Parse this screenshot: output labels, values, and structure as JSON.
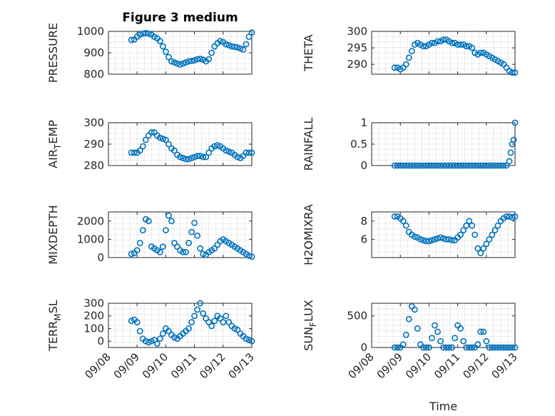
{
  "figure_title": "Figure 3 medium",
  "chart_data": [
    {
      "type": "scatter",
      "ylabel": "PRESSURE",
      "xlabel": "",
      "xlim": [
        0,
        5
      ],
      "ylim": [
        800,
        1000
      ],
      "yticks": [
        800,
        900,
        1000
      ],
      "xticks": [
        "09/08",
        "09/09",
        "09/10",
        "09/11",
        "09/12",
        "09/13"
      ],
      "x": [
        0.8,
        0.9,
        1,
        1.1,
        1.2,
        1.3,
        1.4,
        1.5,
        1.6,
        1.7,
        1.8,
        1.9,
        2,
        2.1,
        2.2,
        2.3,
        2.4,
        2.5,
        2.6,
        2.7,
        2.8,
        2.9,
        3,
        3.1,
        3.2,
        3.3,
        3.4,
        3.5,
        3.6,
        3.7,
        3.8,
        3.9,
        4,
        4.1,
        4.2,
        4.3,
        4.4,
        4.5,
        4.6,
        4.7,
        4.8,
        4.9,
        5
      ],
      "y": [
        960,
        962,
        975,
        985,
        990,
        992,
        990,
        985,
        975,
        968,
        955,
        930,
        905,
        880,
        860,
        855,
        850,
        845,
        850,
        855,
        860,
        862,
        865,
        870,
        872,
        868,
        860,
        870,
        900,
        930,
        945,
        955,
        950,
        940,
        935,
        930,
        928,
        925,
        920,
        915,
        940,
        975,
        995
      ]
    },
    {
      "type": "scatter",
      "ylabel": "THETA",
      "xlabel": "",
      "xlim": [
        0,
        5
      ],
      "ylim": [
        287,
        300
      ],
      "yticks": [
        290,
        295,
        300
      ],
      "xticks": [
        "09/08",
        "09/09",
        "09/10",
        "09/11",
        "09/12",
        "09/13"
      ],
      "x": [
        0.8,
        0.9,
        1,
        1.1,
        1.2,
        1.3,
        1.4,
        1.5,
        1.6,
        1.7,
        1.8,
        1.9,
        2,
        2.1,
        2.2,
        2.3,
        2.4,
        2.5,
        2.6,
        2.7,
        2.8,
        2.9,
        3,
        3.1,
        3.2,
        3.3,
        3.4,
        3.5,
        3.6,
        3.7,
        3.8,
        3.9,
        4,
        4.1,
        4.2,
        4.3,
        4.4,
        4.5,
        4.6,
        4.7,
        4.8,
        4.9,
        5
      ],
      "y": [
        289,
        289,
        288.5,
        289,
        290,
        292,
        294,
        296,
        296.5,
        296,
        295.5,
        295.5,
        296,
        296.5,
        296.5,
        297,
        297,
        297.5,
        297.5,
        297,
        296.5,
        296.5,
        296,
        296,
        296,
        295.5,
        295.5,
        295,
        293.5,
        293,
        293.5,
        293.5,
        293,
        292.5,
        292,
        291.5,
        291,
        290.5,
        290,
        289,
        288,
        287.5,
        287.5
      ]
    },
    {
      "type": "scatter",
      "ylabel": "AIR_TEMP",
      "xlabel": "",
      "xlim": [
        0,
        5
      ],
      "ylim": [
        280,
        300
      ],
      "yticks": [
        280,
        290,
        300
      ],
      "xticks": [
        "09/08",
        "09/09",
        "09/10",
        "09/11",
        "09/12",
        "09/13"
      ],
      "x": [
        0.8,
        0.9,
        1,
        1.1,
        1.2,
        1.3,
        1.4,
        1.5,
        1.6,
        1.7,
        1.8,
        1.9,
        2,
        2.1,
        2.2,
        2.3,
        2.4,
        2.5,
        2.6,
        2.7,
        2.8,
        2.9,
        3,
        3.1,
        3.2,
        3.3,
        3.4,
        3.5,
        3.6,
        3.7,
        3.8,
        3.9,
        4,
        4.1,
        4.2,
        4.3,
        4.4,
        4.5,
        4.6,
        4.7,
        4.8,
        4.9,
        5
      ],
      "y": [
        286,
        286,
        286,
        287,
        289,
        292,
        294,
        295.5,
        295.5,
        294,
        293,
        292.5,
        292,
        290,
        288,
        287,
        285,
        284,
        283.5,
        283,
        283,
        283.5,
        284,
        284.5,
        284.5,
        284,
        284,
        286,
        288,
        289,
        289.5,
        289,
        288,
        287,
        286.5,
        286,
        285,
        284,
        283.5,
        284.5,
        286,
        286,
        286
      ]
    },
    {
      "type": "scatter",
      "ylabel": "RAINFALL",
      "xlabel": "",
      "xlim": [
        0,
        5
      ],
      "ylim": [
        0,
        1
      ],
      "yticks": [
        0,
        0.5,
        1
      ],
      "xticks": [
        "09/08",
        "09/09",
        "09/10",
        "09/11",
        "09/12",
        "09/13"
      ],
      "x": [
        0.8,
        0.9,
        1,
        1.1,
        1.2,
        1.3,
        1.4,
        1.5,
        1.6,
        1.7,
        1.8,
        1.9,
        2,
        2.1,
        2.2,
        2.3,
        2.4,
        2.5,
        2.6,
        2.7,
        2.8,
        2.9,
        3,
        3.1,
        3.2,
        3.3,
        3.4,
        3.5,
        3.6,
        3.7,
        3.8,
        3.9,
        4,
        4.1,
        4.2,
        4.3,
        4.4,
        4.5,
        4.6,
        4.7,
        4.8,
        4.85,
        4.9,
        4.95,
        5
      ],
      "y": [
        0,
        0,
        0,
        0,
        0,
        0,
        0,
        0,
        0,
        0,
        0,
        0,
        0,
        0,
        0,
        0,
        0,
        0,
        0,
        0,
        0,
        0,
        0,
        0,
        0,
        0,
        0,
        0,
        0,
        0,
        0,
        0,
        0,
        0,
        0,
        0,
        0,
        0,
        0,
        0,
        0.1,
        0.3,
        0.5,
        0.6,
        1
      ]
    },
    {
      "type": "scatter",
      "ylabel": "MIXDEPTH",
      "xlabel": "",
      "xlim": [
        0,
        5
      ],
      "ylim": [
        0,
        2500
      ],
      "yticks": [
        0,
        1000,
        2000
      ],
      "xticks": [
        "09/08",
        "09/09",
        "09/10",
        "09/11",
        "09/12",
        "09/13"
      ],
      "x": [
        0.8,
        0.9,
        1,
        1.1,
        1.2,
        1.3,
        1.4,
        1.5,
        1.6,
        1.7,
        1.8,
        1.9,
        2,
        2.1,
        2.2,
        2.3,
        2.4,
        2.5,
        2.6,
        2.7,
        2.8,
        2.9,
        3,
        3.1,
        3.2,
        3.3,
        3.4,
        3.5,
        3.6,
        3.7,
        3.8,
        3.9,
        4,
        4.1,
        4.2,
        4.3,
        4.4,
        4.5,
        4.6,
        4.7,
        4.8,
        4.9,
        5
      ],
      "y": [
        200,
        250,
        400,
        800,
        1500,
        2100,
        2000,
        600,
        500,
        400,
        300,
        600,
        1500,
        2300,
        2000,
        800,
        600,
        400,
        300,
        300,
        800,
        1400,
        1900,
        1200,
        500,
        200,
        150,
        300,
        400,
        500,
        700,
        900,
        1000,
        900,
        800,
        700,
        600,
        500,
        400,
        300,
        200,
        100,
        50
      ]
    },
    {
      "type": "scatter",
      "ylabel": "H2OMIXRA",
      "xlabel": "",
      "xlim": [
        0,
        5
      ],
      "ylim": [
        4,
        9
      ],
      "yticks": [
        6,
        8
      ],
      "xticks": [
        "09/08",
        "09/09",
        "09/10",
        "09/11",
        "09/12",
        "09/13"
      ],
      "x": [
        0.8,
        0.9,
        1,
        1.1,
        1.2,
        1.3,
        1.4,
        1.5,
        1.6,
        1.7,
        1.8,
        1.9,
        2,
        2.1,
        2.2,
        2.3,
        2.4,
        2.5,
        2.6,
        2.7,
        2.8,
        2.9,
        3,
        3.1,
        3.2,
        3.3,
        3.4,
        3.5,
        3.6,
        3.7,
        3.8,
        3.9,
        4,
        4.1,
        4.2,
        4.3,
        4.4,
        4.5,
        4.6,
        4.7,
        4.8,
        4.9,
        5
      ],
      "y": [
        8.5,
        8.5,
        8.3,
        8,
        7.5,
        6.8,
        6.5,
        6.3,
        6.2,
        6,
        5.9,
        5.8,
        5.8,
        5.9,
        6,
        6.1,
        6.2,
        6.1,
        6,
        6,
        5.9,
        5.9,
        6.2,
        6.5,
        7,
        7.5,
        8,
        7.5,
        6.5,
        5,
        4.5,
        5,
        5.5,
        6,
        6.5,
        7,
        7.5,
        8,
        8.3,
        8.5,
        8.5,
        8.4,
        8.5
      ]
    },
    {
      "type": "scatter",
      "ylabel": "TERR_MSL",
      "xlabel": "",
      "xlim": [
        0,
        5
      ],
      "ylim": [
        -50,
        300
      ],
      "yticks": [
        0,
        100,
        200,
        300
      ],
      "xticks": [
        "09/08",
        "09/09",
        "09/10",
        "09/11",
        "09/12",
        "09/13"
      ],
      "x": [
        0.8,
        0.9,
        1,
        1.1,
        1.2,
        1.3,
        1.4,
        1.5,
        1.6,
        1.7,
        1.8,
        1.9,
        2,
        2.1,
        2.2,
        2.3,
        2.4,
        2.5,
        2.6,
        2.7,
        2.8,
        2.9,
        3,
        3.1,
        3.2,
        3.3,
        3.4,
        3.5,
        3.6,
        3.7,
        3.8,
        3.9,
        4,
        4.1,
        4.2,
        4.3,
        4.4,
        4.5,
        4.6,
        4.7,
        4.8,
        4.9,
        5
      ],
      "y": [
        160,
        170,
        150,
        80,
        20,
        0,
        -10,
        0,
        10,
        -20,
        20,
        60,
        100,
        80,
        50,
        30,
        20,
        40,
        60,
        80,
        100,
        150,
        200,
        250,
        300,
        220,
        180,
        150,
        120,
        160,
        200,
        180,
        150,
        200,
        150,
        120,
        100,
        90,
        60,
        40,
        20,
        10,
        0
      ]
    },
    {
      "type": "scatter",
      "ylabel": "SUN_FLUX",
      "xlabel": "Time",
      "xlim": [
        0,
        5
      ],
      "ylim": [
        0,
        700
      ],
      "yticks": [
        0,
        500
      ],
      "xticks": [
        "09/08",
        "09/09",
        "09/10",
        "09/11",
        "09/12",
        "09/13"
      ],
      "x": [
        0.8,
        0.9,
        1,
        1.1,
        1.2,
        1.3,
        1.4,
        1.5,
        1.6,
        1.7,
        1.8,
        1.9,
        2,
        2.1,
        2.2,
        2.3,
        2.4,
        2.5,
        2.6,
        2.7,
        2.8,
        2.9,
        3,
        3.1,
        3.2,
        3.3,
        3.4,
        3.5,
        3.6,
        3.7,
        3.8,
        3.9,
        4,
        4.1,
        4.2,
        4.3,
        4.4,
        4.5,
        4.6,
        4.7,
        4.8,
        4.9,
        5
      ],
      "y": [
        0,
        0,
        0,
        50,
        200,
        450,
        650,
        600,
        300,
        50,
        0,
        0,
        0,
        150,
        350,
        250,
        100,
        0,
        0,
        0,
        0,
        150,
        350,
        300,
        100,
        0,
        0,
        0,
        0,
        50,
        250,
        250,
        100,
        0,
        0,
        0,
        0,
        0,
        0,
        0,
        0,
        0,
        0
      ]
    }
  ]
}
